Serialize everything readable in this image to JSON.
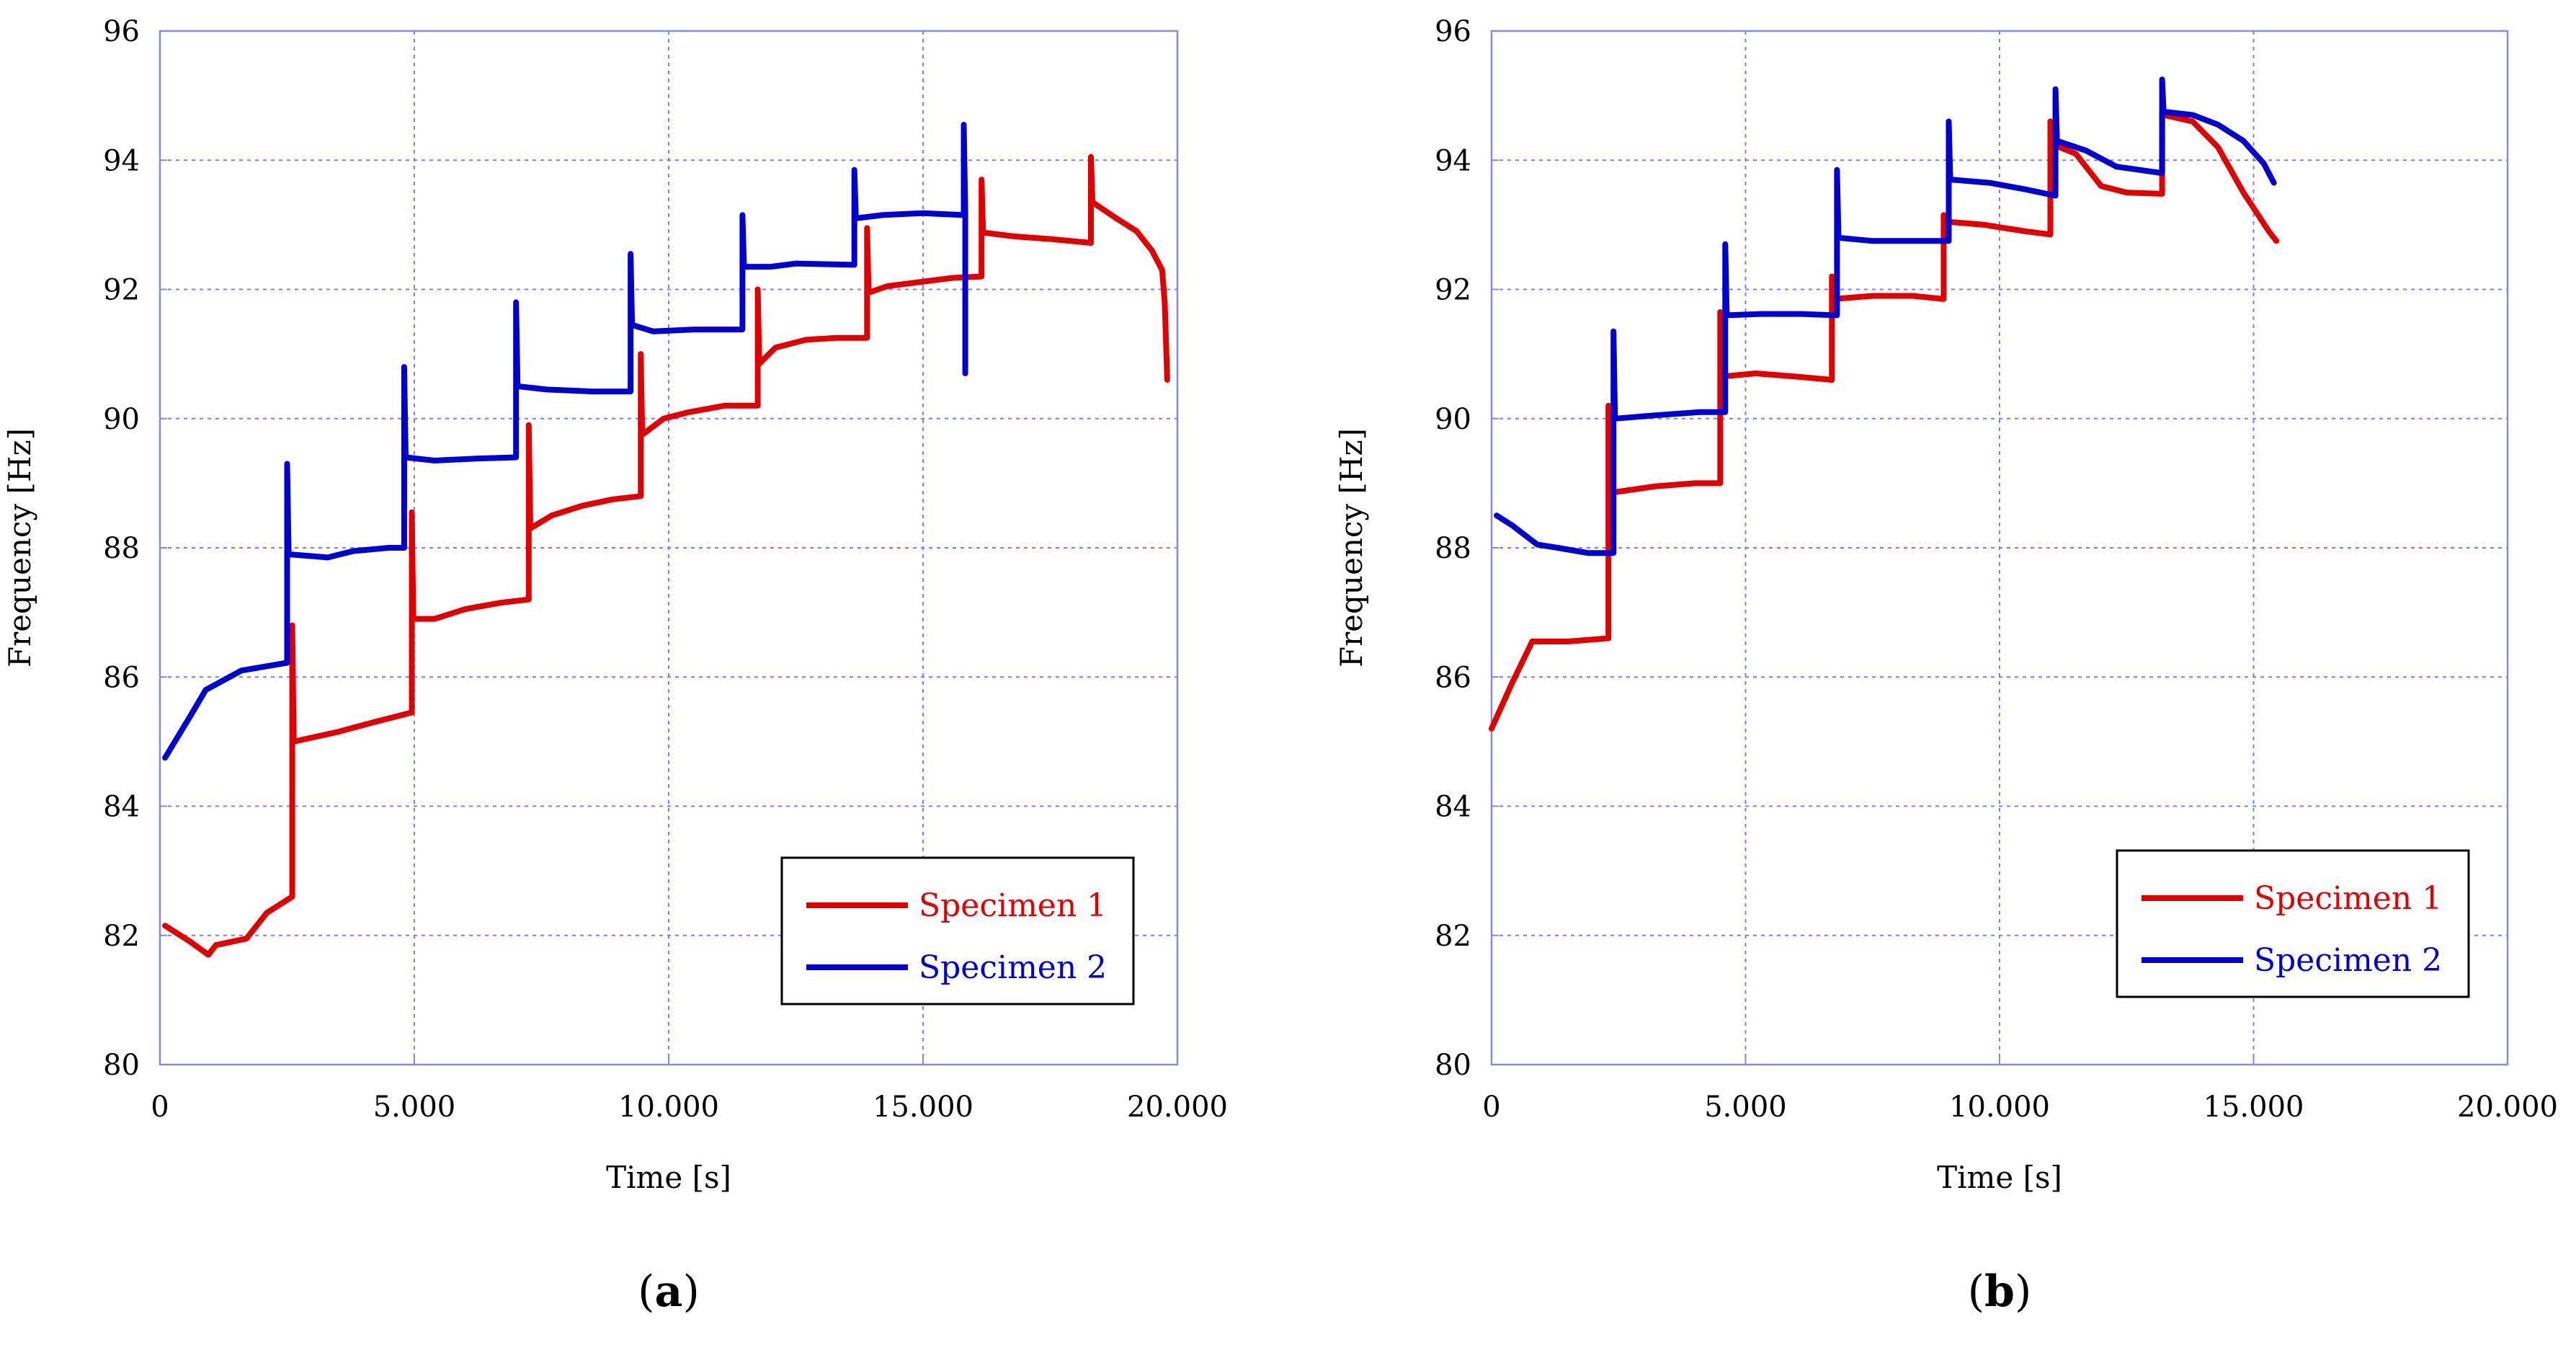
{
  "chart_data": [
    {
      "type": "line",
      "caption_letter": "a",
      "xlabel": "Time [s]",
      "ylabel": "Frequency [Hz]",
      "xlim": [
        0,
        20000
      ],
      "ylim": [
        80,
        96
      ],
      "x_ticks": [
        0,
        5000,
        10000,
        15000,
        20000
      ],
      "x_tick_labels": [
        "0",
        "5.000",
        "10.000",
        "15.000",
        "20.000"
      ],
      "y_ticks": [
        80,
        82,
        84,
        86,
        88,
        90,
        92,
        94,
        96
      ],
      "y_tick_labels": [
        "80",
        "82",
        "84",
        "86",
        "88",
        "90",
        "92",
        "94",
        "96"
      ],
      "grid": true,
      "legend_position": "bottom-right",
      "series": [
        {
          "name": "Specimen 1",
          "color": "#e00000",
          "points": [
            [
              100,
              82.15
            ],
            [
              600,
              81.9
            ],
            [
              950,
              81.7
            ],
            [
              1100,
              81.85
            ],
            [
              1700,
              81.95
            ],
            [
              2100,
              82.35
            ],
            [
              2600,
              82.6
            ],
            [
              2600,
              86.8
            ],
            [
              2630,
              85.0
            ],
            [
              3500,
              85.15
            ],
            [
              4200,
              85.3
            ],
            [
              4950,
              85.45
            ],
            [
              4950,
              88.55
            ],
            [
              4980,
              86.9
            ],
            [
              5400,
              86.9
            ],
            [
              6000,
              87.05
            ],
            [
              6700,
              87.15
            ],
            [
              7250,
              87.2
            ],
            [
              7250,
              89.9
            ],
            [
              7280,
              88.3
            ],
            [
              7700,
              88.5
            ],
            [
              8300,
              88.65
            ],
            [
              8900,
              88.75
            ],
            [
              9450,
              88.8
            ],
            [
              9450,
              91.0
            ],
            [
              9480,
              89.75
            ],
            [
              9900,
              90.0
            ],
            [
              10400,
              90.1
            ],
            [
              11100,
              90.2
            ],
            [
              11750,
              90.2
            ],
            [
              11750,
              92.0
            ],
            [
              11780,
              90.85
            ],
            [
              12100,
              91.1
            ],
            [
              12700,
              91.22
            ],
            [
              13300,
              91.25
            ],
            [
              13900,
              91.25
            ],
            [
              13900,
              92.95
            ],
            [
              13930,
              91.95
            ],
            [
              14300,
              92.05
            ],
            [
              15000,
              92.12
            ],
            [
              15600,
              92.18
            ],
            [
              16150,
              92.2
            ],
            [
              16150,
              93.7
            ],
            [
              16180,
              92.88
            ],
            [
              16800,
              92.82
            ],
            [
              17500,
              92.78
            ],
            [
              18300,
              92.72
            ],
            [
              18300,
              94.05
            ],
            [
              18330,
              93.35
            ],
            [
              18800,
              93.1
            ],
            [
              19200,
              92.9
            ],
            [
              19500,
              92.6
            ],
            [
              19700,
              92.3
            ],
            [
              19750,
              91.8
            ],
            [
              19800,
              90.6
            ]
          ]
        },
        {
          "name": "Specimen 2",
          "color": "#0000d0",
          "points": [
            [
              100,
              84.75
            ],
            [
              600,
              85.4
            ],
            [
              900,
              85.8
            ],
            [
              1600,
              86.1
            ],
            [
              2500,
              86.22
            ],
            [
              2500,
              89.3
            ],
            [
              2530,
              87.9
            ],
            [
              3300,
              87.85
            ],
            [
              3800,
              87.95
            ],
            [
              4500,
              88.0
            ],
            [
              4800,
              88.0
            ],
            [
              4800,
              90.8
            ],
            [
              4830,
              89.4
            ],
            [
              5400,
              89.35
            ],
            [
              6200,
              89.38
            ],
            [
              7000,
              89.4
            ],
            [
              7000,
              91.8
            ],
            [
              7030,
              90.5
            ],
            [
              7600,
              90.45
            ],
            [
              8500,
              90.42
            ],
            [
              9250,
              90.42
            ],
            [
              9250,
              92.55
            ],
            [
              9280,
              91.45
            ],
            [
              9700,
              91.35
            ],
            [
              10500,
              91.38
            ],
            [
              11450,
              91.38
            ],
            [
              11450,
              93.15
            ],
            [
              11480,
              92.35
            ],
            [
              12000,
              92.35
            ],
            [
              12500,
              92.4
            ],
            [
              13650,
              92.38
            ],
            [
              13650,
              93.85
            ],
            [
              13680,
              93.1
            ],
            [
              14200,
              93.15
            ],
            [
              15000,
              93.18
            ],
            [
              15800,
              93.15
            ],
            [
              15800,
              94.55
            ],
            [
              15830,
              93.2
            ],
            [
              15830,
              90.7
            ]
          ]
        }
      ]
    },
    {
      "type": "line",
      "caption_letter": "b",
      "xlabel": "Time [s]",
      "ylabel": "Frequency [Hz]",
      "xlim": [
        0,
        20000
      ],
      "ylim": [
        80,
        96
      ],
      "x_ticks": [
        0,
        5000,
        10000,
        15000,
        20000
      ],
      "x_tick_labels": [
        "0",
        "5.000",
        "10.000",
        "15.000",
        "20.000"
      ],
      "y_ticks": [
        80,
        82,
        84,
        86,
        88,
        90,
        92,
        94,
        96
      ],
      "y_tick_labels": [
        "80",
        "82",
        "84",
        "86",
        "88",
        "90",
        "92",
        "94",
        "96"
      ],
      "grid": true,
      "legend_position": "bottom-right",
      "series": [
        {
          "name": "Specimen 1",
          "color": "#e00000",
          "points": [
            [
              0,
              85.2
            ],
            [
              400,
              85.9
            ],
            [
              800,
              86.55
            ],
            [
              1500,
              86.55
            ],
            [
              2300,
              86.6
            ],
            [
              2300,
              90.2
            ],
            [
              2330,
              88.85
            ],
            [
              3200,
              88.95
            ],
            [
              4000,
              89.0
            ],
            [
              4500,
              89.0
            ],
            [
              4500,
              91.65
            ],
            [
              4530,
              90.65
            ],
            [
              5200,
              90.7
            ],
            [
              6000,
              90.65
            ],
            [
              6700,
              90.6
            ],
            [
              6700,
              92.2
            ],
            [
              6730,
              91.85
            ],
            [
              7500,
              91.9
            ],
            [
              8300,
              91.9
            ],
            [
              8900,
              91.85
            ],
            [
              8900,
              93.15
            ],
            [
              8930,
              93.05
            ],
            [
              9700,
              93.0
            ],
            [
              10500,
              92.9
            ],
            [
              11000,
              92.85
            ],
            [
              11000,
              94.6
            ],
            [
              11030,
              94.25
            ],
            [
              11500,
              94.1
            ],
            [
              12000,
              93.6
            ],
            [
              12500,
              93.5
            ],
            [
              13200,
              93.48
            ],
            [
              13200,
              94.75
            ],
            [
              13230,
              94.7
            ],
            [
              13800,
              94.6
            ],
            [
              14300,
              94.2
            ],
            [
              14800,
              93.5
            ],
            [
              15300,
              92.9
            ],
            [
              15450,
              92.75
            ]
          ]
        },
        {
          "name": "Specimen 2",
          "color": "#0000d0",
          "points": [
            [
              100,
              88.5
            ],
            [
              400,
              88.35
            ],
            [
              900,
              88.05
            ],
            [
              1300,
              88.0
            ],
            [
              1900,
              87.92
            ],
            [
              2400,
              87.92
            ],
            [
              2400,
              91.35
            ],
            [
              2430,
              90.0
            ],
            [
              3200,
              90.05
            ],
            [
              4100,
              90.1
            ],
            [
              4600,
              90.1
            ],
            [
              4600,
              92.7
            ],
            [
              4630,
              91.6
            ],
            [
              5300,
              91.62
            ],
            [
              6100,
              91.62
            ],
            [
              6800,
              91.6
            ],
            [
              6800,
              93.85
            ],
            [
              6830,
              92.8
            ],
            [
              7500,
              92.75
            ],
            [
              8400,
              92.75
            ],
            [
              9000,
              92.75
            ],
            [
              9000,
              94.6
            ],
            [
              9030,
              93.7
            ],
            [
              9800,
              93.65
            ],
            [
              10500,
              93.55
            ],
            [
              11100,
              93.45
            ],
            [
              11100,
              95.1
            ],
            [
              11130,
              94.3
            ],
            [
              11700,
              94.15
            ],
            [
              12300,
              93.9
            ],
            [
              13200,
              93.8
            ],
            [
              13200,
              95.25
            ],
            [
              13230,
              94.75
            ],
            [
              13800,
              94.7
            ],
            [
              14300,
              94.55
            ],
            [
              14800,
              94.3
            ],
            [
              15200,
              93.95
            ],
            [
              15400,
              93.65
            ]
          ]
        }
      ]
    }
  ]
}
